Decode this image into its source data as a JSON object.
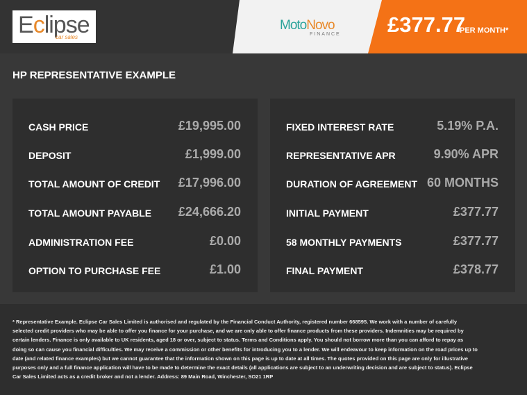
{
  "header": {
    "dealer_logo": "Eclipse car sales",
    "finance_logo": {
      "name_part1": "Moto",
      "name_part2": "Novo",
      "sub": "FINANCE"
    },
    "monthly_price": "£377.77",
    "per_month": "PER MONTH*"
  },
  "title": "HP REPRESENTATIVE EXAMPLE",
  "left": [
    {
      "label": "CASH PRICE",
      "value": "£19,995.00"
    },
    {
      "label": "DEPOSIT",
      "value": "£1,999.00"
    },
    {
      "label": "TOTAL AMOUNT OF CREDIT",
      "value": "£17,996.00"
    },
    {
      "label": "TOTAL AMOUNT PAYABLE",
      "value": "£24,666.20"
    },
    {
      "label": "ADMINISTRATION FEE",
      "value": "£0.00"
    },
    {
      "label": "OPTION TO PURCHASE FEE",
      "value": "£1.00"
    }
  ],
  "right": [
    {
      "label": "FIXED INTEREST RATE",
      "value": "5.19% P.A."
    },
    {
      "label": "REPRESENTATIVE APR",
      "value": "9.90% APR"
    },
    {
      "label": "DURATION OF AGREEMENT",
      "value": "60 MONTHS"
    },
    {
      "label": "INITIAL PAYMENT",
      "value": "£377.77"
    },
    {
      "label": "58 MONTHLY PAYMENTS",
      "value": "£377.77"
    },
    {
      "label": "FINAL PAYMENT",
      "value": "£378.77"
    }
  ],
  "disclaimer": "* Representative Example. Eclipse Car Sales Limited is authorised and regulated by the Financial Conduct Authority, registered number 668595. We work with a number of carefully selected credit providers who may be able to offer you finance for your purchase, and we are only able to offer finance products from these providers. Indemnities may be required by certain lenders. Finance is only available to UK residents, aged 18 or over, subject to status. Terms and Conditions apply. You should not borrow more than you can afford to repay as doing so can cause you financial difficulties. We may receive a commission or other benefits for introducing you to a lender. We will endeavour to keep information on the road prices up to date (and related finance examples) but we cannot guarantee that the information shown on this page is up to date at all times. The quotes provided on this page are only for illustrative purposes only and a full finance application will have to be made to determine the exact details (all applications are subject to an underwriting decision and are subject to status). Eclipse Car Sales Limited acts as a credit broker and not a lender. Address: 89 Main Road, Winchester, SO21 1RP"
}
